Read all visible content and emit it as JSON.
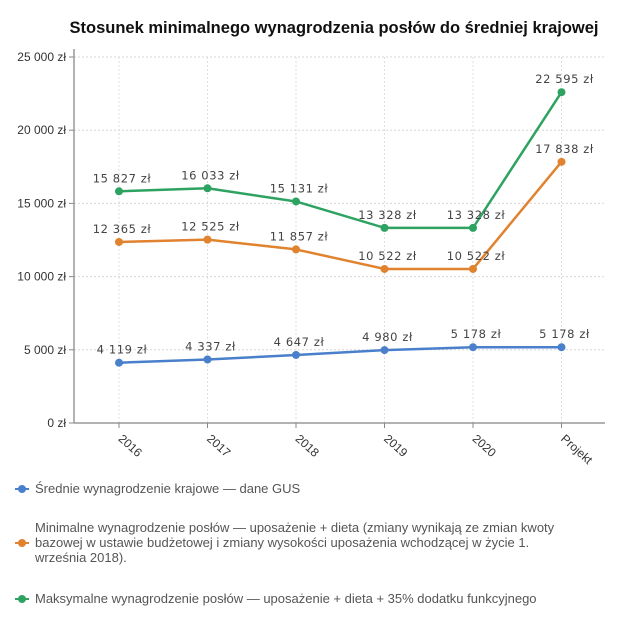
{
  "chart_data": {
    "type": "line",
    "title": "Stosunek minimalnego wynagrodzenia posłów do średniej krajowej",
    "xlabel": "",
    "ylabel": "",
    "categories": [
      "2016",
      "2017",
      "2018",
      "2019",
      "2020",
      "Projekt"
    ],
    "ylim": [
      0,
      25000
    ],
    "yticks": [
      0,
      5000,
      10000,
      15000,
      20000,
      25000
    ],
    "ytick_labels": [
      "0 zł",
      "5 000 zł",
      "10 000 zł",
      "15 000 zł",
      "20 000 zł",
      "25 000 zł"
    ],
    "grid": true,
    "legend_position": "bottom",
    "series": [
      {
        "name": "Średnie wynagrodzenie krajowe — dane GUS",
        "color": "#4a7fcb",
        "values": [
          4119,
          4337,
          4647,
          4980,
          5178,
          5178
        ],
        "labels": [
          "4 119 zł",
          "4 337 zł",
          "4 647 zł",
          "4 980 zł",
          "5 178 zł",
          "5 178 zł"
        ]
      },
      {
        "name": "Minimalne wynagrodzenie posłów — uposażenie + dieta (zmiany wynikają ze zmian kwoty bazowej w ustawie budżetowej i zmiany wysokości uposażenia wchodzącej w życie 1. września 2018).",
        "color": "#e0822e",
        "values": [
          12365,
          12525,
          11857,
          10522,
          10522,
          17838
        ],
        "labels": [
          "12 365 zł",
          "12 525 zł",
          "11 857 zł",
          "10 522 zł",
          "10 522 zł",
          "17 838 zł"
        ]
      },
      {
        "name": "Maksymalne wynagrodzenie posłów — uposażenie + dieta + 35% dodatku funkcyjnego",
        "color": "#2ea361",
        "values": [
          15827,
          16033,
          15131,
          13328,
          13328,
          22595
        ],
        "labels": [
          "15 827 zł",
          "16 033 zł",
          "15 131 zł",
          "13 328 zł",
          "13 328 zł",
          "22 595 zł"
        ]
      }
    ]
  }
}
